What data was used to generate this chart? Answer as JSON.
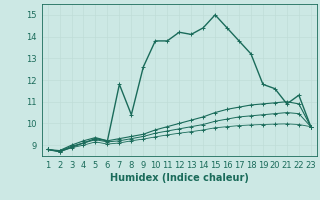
{
  "xlabel": "Humidex (Indice chaleur)",
  "x_values": [
    1,
    2,
    3,
    4,
    5,
    6,
    7,
    8,
    9,
    10,
    11,
    12,
    13,
    14,
    15,
    16,
    17,
    18,
    19,
    20,
    21,
    22,
    23
  ],
  "lines": [
    {
      "y": [
        8.8,
        8.7,
        8.9,
        9.1,
        9.3,
        9.2,
        11.8,
        10.4,
        12.6,
        13.8,
        13.8,
        14.2,
        14.1,
        14.4,
        15.0,
        14.4,
        13.8,
        13.2,
        11.8,
        11.6,
        10.9,
        11.3,
        9.85
      ],
      "lw": 1.0
    },
    {
      "y": [
        8.8,
        8.75,
        9.0,
        9.2,
        9.35,
        9.2,
        9.3,
        9.4,
        9.5,
        9.7,
        9.85,
        10.0,
        10.15,
        10.3,
        10.5,
        10.65,
        10.75,
        10.85,
        10.9,
        10.95,
        11.0,
        10.9,
        9.85
      ],
      "lw": 0.8
    },
    {
      "y": [
        8.8,
        8.72,
        8.95,
        9.1,
        9.25,
        9.15,
        9.2,
        9.3,
        9.4,
        9.55,
        9.65,
        9.75,
        9.85,
        9.95,
        10.1,
        10.2,
        10.3,
        10.35,
        10.4,
        10.45,
        10.5,
        10.45,
        9.85
      ],
      "lw": 0.7
    },
    {
      "y": [
        8.8,
        8.7,
        8.88,
        9.0,
        9.15,
        9.05,
        9.1,
        9.2,
        9.28,
        9.38,
        9.47,
        9.55,
        9.62,
        9.7,
        9.8,
        9.85,
        9.9,
        9.93,
        9.95,
        9.97,
        9.98,
        9.95,
        9.85
      ],
      "lw": 0.6
    }
  ],
  "xlim": [
    0.5,
    23.5
  ],
  "ylim": [
    8.5,
    15.5
  ],
  "yticks": [
    9,
    10,
    11,
    12,
    13,
    14,
    15
  ],
  "xticks": [
    1,
    2,
    3,
    4,
    5,
    6,
    7,
    8,
    9,
    10,
    11,
    12,
    13,
    14,
    15,
    16,
    17,
    18,
    19,
    20,
    21,
    22,
    23
  ],
  "grid_color": "#c0ddd8",
  "bg_color": "#cce8e4",
  "line_color": "#1a6b5a",
  "xlabel_fontsize": 7,
  "tick_fontsize": 6,
  "marker_size": 3,
  "marker": "+"
}
